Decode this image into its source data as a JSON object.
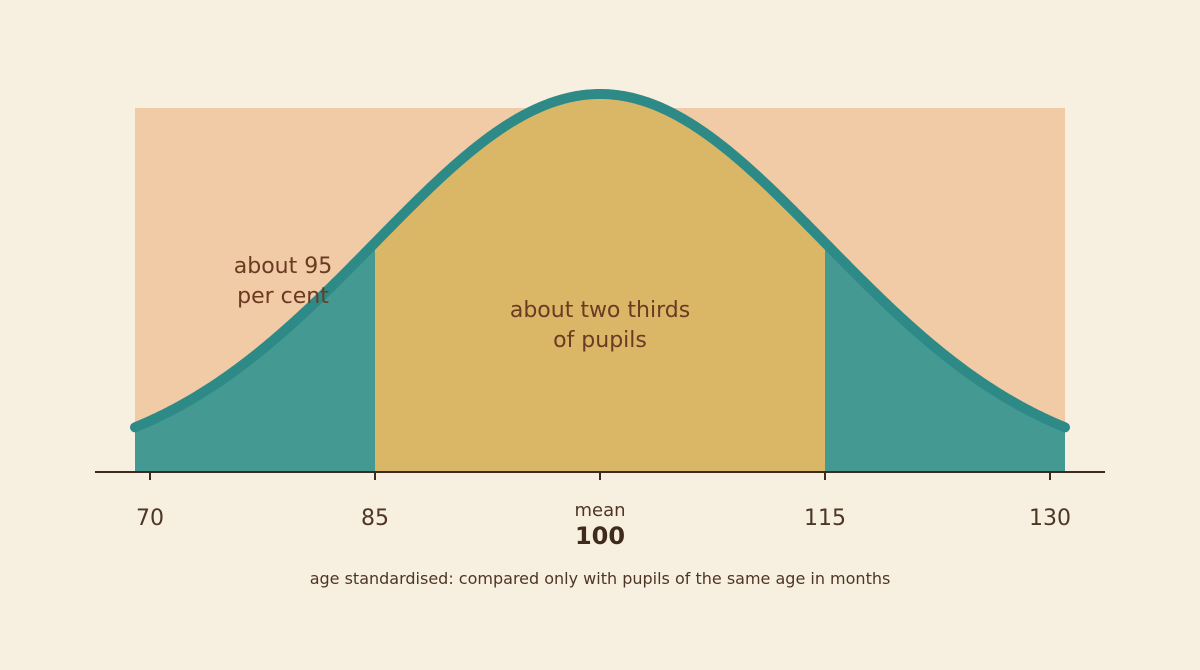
{
  "chart_data": {
    "type": "area",
    "distribution": "normal",
    "mean": 100,
    "sd": 15,
    "x_ticks": [
      70,
      85,
      100,
      115,
      130
    ],
    "tick_labels": [
      "70",
      "85",
      "100",
      "115",
      "130"
    ],
    "mean_label": "mean",
    "band_95": [
      70,
      130
    ],
    "band_two_thirds": [
      85,
      115
    ],
    "annotations": {
      "outer": [
        "about 95",
        "per cent"
      ],
      "inner": [
        "about two thirds",
        "of pupils"
      ]
    },
    "caption": "age standardised: compared only with pupils of the same age in months",
    "colors": {
      "background": "#f7f0e1",
      "band_95": "#f0cba5",
      "band_two_thirds": "#d9b767",
      "tails": "#449a92",
      "curve": "#2e8a86",
      "axis": "#3a2a20",
      "text": "#5a3a2a"
    }
  }
}
